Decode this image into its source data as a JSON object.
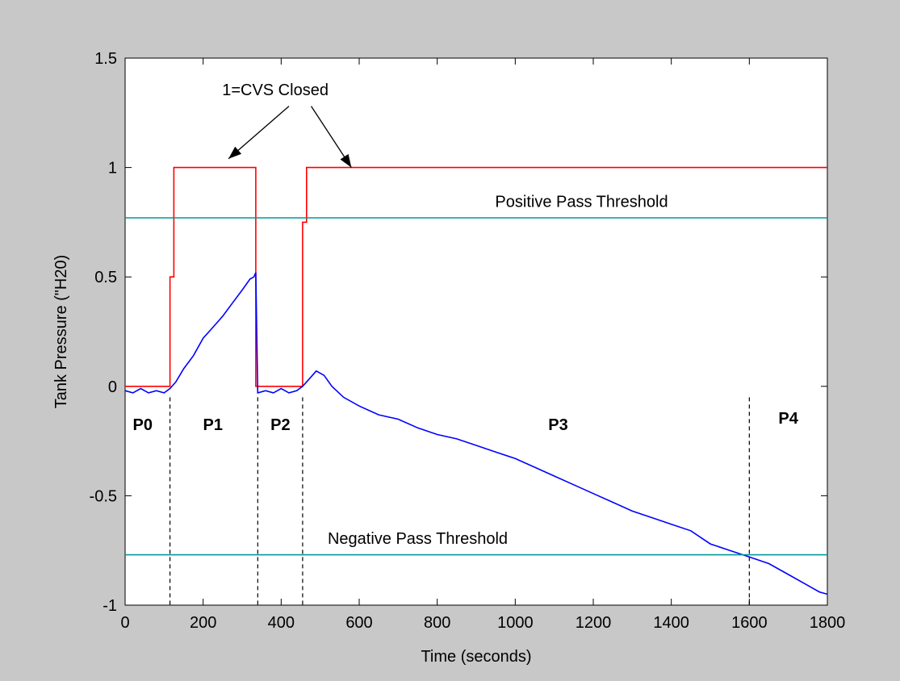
{
  "chart_data": {
    "type": "line",
    "title": "",
    "xlabel": "Time (seconds)",
    "ylabel": "Tank Pressure (\"H20)",
    "xlim": [
      0,
      1800
    ],
    "ylim": [
      -1,
      1.5
    ],
    "grid": false,
    "xticks": [
      0,
      200,
      400,
      600,
      800,
      1000,
      1200,
      1400,
      1600,
      1800
    ],
    "yticks": [
      -1,
      -0.5,
      0,
      0.5,
      1,
      1.5
    ],
    "xtick_labels": [
      "0",
      "200",
      "400",
      "600",
      "800",
      "1000",
      "1200",
      "1400",
      "1600",
      "1800"
    ],
    "ytick_labels": [
      "-1",
      "-0.5",
      "0",
      "0.5",
      "1",
      "1.5"
    ],
    "series": [
      {
        "color": "#ff0000",
        "x": [
          0,
          115,
          115,
          125,
          125,
          335,
          335,
          355,
          355,
          455,
          455,
          465,
          465,
          1800
        ],
        "y": [
          0,
          0,
          0.5,
          0.5,
          1,
          1,
          0,
          0,
          0,
          0,
          0.75,
          0.75,
          1,
          1
        ]
      },
      {
        "color": "#0000ff",
        "x": [
          0,
          20,
          40,
          60,
          80,
          100,
          115,
          130,
          150,
          175,
          200,
          225,
          250,
          275,
          300,
          320,
          330,
          335,
          340,
          360,
          380,
          400,
          420,
          440,
          455,
          470,
          490,
          510,
          530,
          560,
          600,
          650,
          700,
          750,
          800,
          850,
          900,
          950,
          1000,
          1050,
          1100,
          1150,
          1200,
          1250,
          1300,
          1350,
          1400,
          1450,
          1500,
          1550,
          1600,
          1650,
          1700,
          1750,
          1780,
          1800
        ],
        "y": [
          -0.02,
          -0.03,
          -0.01,
          -0.03,
          -0.02,
          -0.03,
          -0.01,
          0.02,
          0.08,
          0.14,
          0.22,
          0.27,
          0.32,
          0.38,
          0.44,
          0.49,
          0.5,
          0.52,
          -0.03,
          -0.02,
          -0.03,
          -0.01,
          -0.03,
          -0.02,
          0.0,
          0.03,
          0.07,
          0.05,
          0.0,
          -0.05,
          -0.09,
          -0.13,
          -0.15,
          -0.19,
          -0.22,
          -0.24,
          -0.27,
          -0.3,
          -0.33,
          -0.37,
          -0.41,
          -0.45,
          -0.49,
          -0.53,
          -0.57,
          -0.6,
          -0.63,
          -0.66,
          -0.72,
          -0.75,
          -0.78,
          -0.81,
          -0.86,
          -0.91,
          -0.94,
          -0.95
        ]
      },
      {
        "color": "#009999",
        "x": [
          0,
          1800
        ],
        "y": [
          0.77,
          0.77
        ]
      },
      {
        "color": "#009999",
        "x": [
          0,
          1800
        ],
        "y": [
          -0.77,
          -0.77
        ]
      }
    ],
    "phase_boundaries": [
      115,
      340,
      455,
      1600
    ],
    "phase_labels": [
      {
        "text": "P0",
        "x": 45,
        "y": -0.2
      },
      {
        "text": "P1",
        "x": 225,
        "y": -0.2
      },
      {
        "text": "P2",
        "x": 398,
        "y": -0.2
      },
      {
        "text": "P3",
        "x": 1110,
        "y": -0.2
      },
      {
        "text": "P4",
        "x": 1700,
        "y": -0.17
      }
    ],
    "annotations": [
      {
        "text": "Positive Pass Threshold",
        "x": 1170,
        "y": 0.82
      },
      {
        "text": "Negative Pass Threshold",
        "x": 750,
        "y": -0.72
      },
      {
        "text": "1=CVS Closed",
        "x": 385,
        "y": 1.33
      }
    ],
    "arrows": [
      {
        "from": [
          420,
          1.28
        ],
        "to": [
          265,
          1.04
        ]
      },
      {
        "from": [
          477,
          1.28
        ],
        "to": [
          580,
          1.0
        ]
      }
    ]
  }
}
